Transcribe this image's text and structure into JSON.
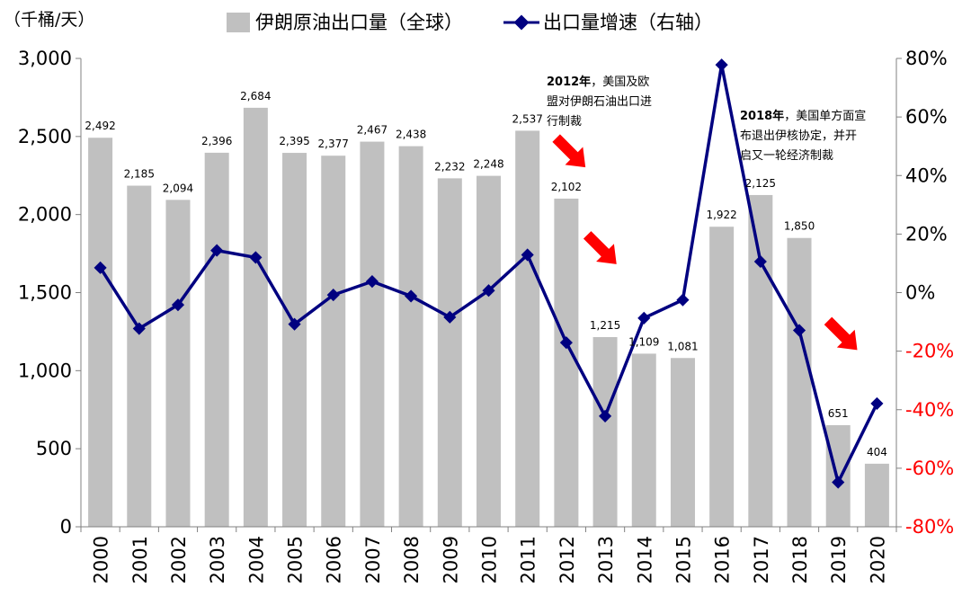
{
  "chart_data": {
    "type": "bar+line",
    "unit_label": "（千桶/天）",
    "categories": [
      "2000",
      "2001",
      "2002",
      "2003",
      "2004",
      "2005",
      "2006",
      "2007",
      "2008",
      "2009",
      "2010",
      "2011",
      "2012",
      "2013",
      "2014",
      "2015",
      "2016",
      "2017",
      "2018",
      "2019",
      "2020"
    ],
    "bar_series": {
      "name": "伊朗原油出口量（全球）",
      "color": "#c0c0c0",
      "values": [
        2492,
        2185,
        2094,
        2396,
        2684,
        2395,
        2377,
        2467,
        2438,
        2232,
        2248,
        2537,
        2102,
        1215,
        1109,
        1081,
        1922,
        2125,
        1850,
        651,
        404
      ],
      "labels": [
        "2,492",
        "2,185",
        "2,094",
        "2,396",
        "2,684",
        "2,395",
        "2,377",
        "2,467",
        "2,438",
        "2,232",
        "2,248",
        "2,537",
        "2,102",
        "1,215",
        "1,109",
        "1,081",
        "1,922",
        "2,125",
        "1,850",
        "651",
        "404"
      ]
    },
    "line_series": {
      "name": "出口量增速（右轴）",
      "color": "#000080",
      "values": [
        8.5,
        -12.3,
        -4.2,
        14.4,
        12.0,
        -10.8,
        -0.8,
        3.8,
        -1.2,
        -8.4,
        0.7,
        12.9,
        -17.1,
        -42.2,
        -8.7,
        -2.5,
        77.8,
        10.6,
        -12.9,
        -64.8,
        -37.9
      ]
    },
    "y_left": {
      "min": 0,
      "max": 3000,
      "ticks": [
        0,
        500,
        1000,
        1500,
        2000,
        2500,
        3000
      ],
      "tick_labels": [
        "0",
        "500",
        "1,000",
        "1,500",
        "2,000",
        "2,500",
        "3,000"
      ]
    },
    "y_right": {
      "min": -80,
      "max": 80,
      "ticks": [
        -80,
        -60,
        -40,
        -20,
        0,
        20,
        40,
        60,
        80
      ],
      "tick_labels": [
        "-80%",
        "-60%",
        "-40%",
        "-20%",
        "0%",
        "20%",
        "40%",
        "60%",
        "80%"
      ],
      "negative_color": "#ff0000"
    },
    "annotations": [
      {
        "year_text": "2012年",
        "lines": [
          "，美国及欧",
          "盟对伊朗石油出口进",
          "行制裁"
        ]
      },
      {
        "year_text": "2018年",
        "lines": [
          "，美国单方面宣",
          "布退出伊核协定，并开",
          "启又一轮经济制裁"
        ]
      }
    ],
    "arrows": [
      {
        "x": 12.6,
        "y_left": 2400
      },
      {
        "x": 13.4,
        "y_left": 1780
      },
      {
        "x": 19.6,
        "y_left": 1230
      }
    ],
    "arrow_color": "#ff0000",
    "grid": false
  }
}
